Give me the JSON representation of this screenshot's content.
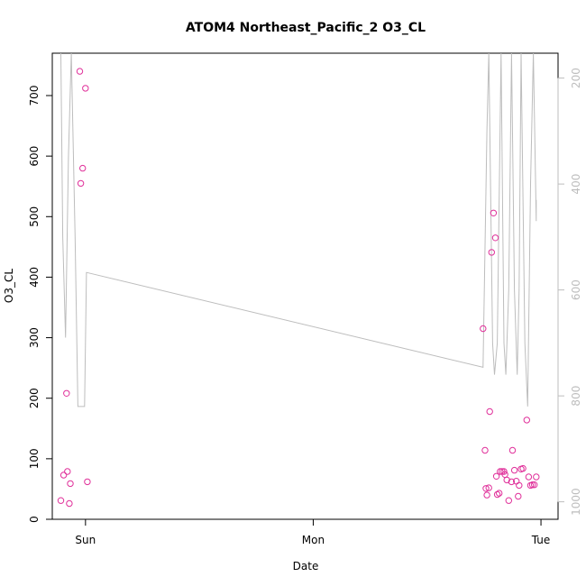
{
  "chart_data": {
    "type": "scatter",
    "title": "ATOM4 Northeast_Pacific_2 O3_CL",
    "xlabel": "Date",
    "ylabel": "O3_CL",
    "x_unit": "hours since Sun 00:00",
    "xlim": [
      -3.5,
      49.8
    ],
    "ylim": [
      0,
      770
    ],
    "x_ticks": [
      {
        "label": "Sun",
        "value": 0
      },
      {
        "label": "Mon",
        "value": 24
      },
      {
        "label": "Tue",
        "value": 48
      }
    ],
    "y_ticks": [
      0,
      100,
      200,
      300,
      400,
      500,
      600,
      700
    ],
    "right_axis": {
      "inverted": true,
      "lim": [
        1033,
        153
      ],
      "ticks": [
        200,
        400,
        600,
        800,
        1000
      ],
      "color": "#bdbdbd"
    },
    "colors": {
      "points": "#e0309a",
      "line": "#bdbdbd",
      "axis": "#000000"
    },
    "series": [
      {
        "kind": "points",
        "values": [
          {
            "x": -2.6,
            "y": 31
          },
          {
            "x": -2.3,
            "y": 73
          },
          {
            "x": -2.0,
            "y": 208
          },
          {
            "x": -1.9,
            "y": 79
          },
          {
            "x": -1.7,
            "y": 26
          },
          {
            "x": -1.6,
            "y": 59
          },
          {
            "x": -0.6,
            "y": 740
          },
          {
            "x": -0.5,
            "y": 555
          },
          {
            "x": -0.3,
            "y": 580
          },
          {
            "x": 0.0,
            "y": 712
          },
          {
            "x": 0.2,
            "y": 62
          },
          {
            "x": 41.9,
            "y": 315
          },
          {
            "x": 42.1,
            "y": 114
          },
          {
            "x": 42.2,
            "y": 51
          },
          {
            "x": 42.3,
            "y": 40
          },
          {
            "x": 42.5,
            "y": 52
          },
          {
            "x": 42.6,
            "y": 178
          },
          {
            "x": 42.8,
            "y": 441
          },
          {
            "x": 43.0,
            "y": 506
          },
          {
            "x": 43.2,
            "y": 465
          },
          {
            "x": 43.3,
            "y": 71
          },
          {
            "x": 43.4,
            "y": 41
          },
          {
            "x": 43.6,
            "y": 43
          },
          {
            "x": 43.7,
            "y": 79
          },
          {
            "x": 43.9,
            "y": 79
          },
          {
            "x": 44.1,
            "y": 79
          },
          {
            "x": 44.2,
            "y": 74
          },
          {
            "x": 44.4,
            "y": 65
          },
          {
            "x": 44.6,
            "y": 31
          },
          {
            "x": 44.9,
            "y": 62
          },
          {
            "x": 45.0,
            "y": 114
          },
          {
            "x": 45.2,
            "y": 81
          },
          {
            "x": 45.4,
            "y": 63
          },
          {
            "x": 45.6,
            "y": 38
          },
          {
            "x": 45.7,
            "y": 56
          },
          {
            "x": 45.9,
            "y": 83
          },
          {
            "x": 46.1,
            "y": 84
          },
          {
            "x": 46.5,
            "y": 164
          },
          {
            "x": 46.7,
            "y": 70
          },
          {
            "x": 46.9,
            "y": 56
          },
          {
            "x": 47.1,
            "y": 57
          },
          {
            "x": 47.3,
            "y": 57
          },
          {
            "x": 47.5,
            "y": 70
          }
        ]
      },
      {
        "kind": "line",
        "axis": "right",
        "values": [
          {
            "x": -2.6,
            "y": 153
          },
          {
            "x": -2.4,
            "y": 500
          },
          {
            "x": -2.1,
            "y": 690
          },
          {
            "x": -1.8,
            "y": 350
          },
          {
            "x": -1.5,
            "y": 153
          },
          {
            "x": -1.1,
            "y": 500
          },
          {
            "x": -0.8,
            "y": 820
          },
          {
            "x": -0.1,
            "y": 820
          },
          {
            "x": 0.1,
            "y": 567
          },
          {
            "x": 41.9,
            "y": 746
          },
          {
            "x": 42.3,
            "y": 300
          },
          {
            "x": 42.5,
            "y": 153
          },
          {
            "x": 42.9,
            "y": 700
          },
          {
            "x": 43.1,
            "y": 760
          },
          {
            "x": 43.4,
            "y": 700
          },
          {
            "x": 43.8,
            "y": 153
          },
          {
            "x": 44.1,
            "y": 700
          },
          {
            "x": 44.3,
            "y": 760
          },
          {
            "x": 44.6,
            "y": 600
          },
          {
            "x": 44.9,
            "y": 153
          },
          {
            "x": 45.2,
            "y": 600
          },
          {
            "x": 45.5,
            "y": 760
          },
          {
            "x": 45.7,
            "y": 600
          },
          {
            "x": 45.9,
            "y": 153
          },
          {
            "x": 46.3,
            "y": 700
          },
          {
            "x": 46.6,
            "y": 820
          },
          {
            "x": 46.9,
            "y": 400
          },
          {
            "x": 47.2,
            "y": 153
          },
          {
            "x": 47.5,
            "y": 470
          },
          {
            "x": 47.5,
            "y": 430
          }
        ]
      }
    ]
  }
}
